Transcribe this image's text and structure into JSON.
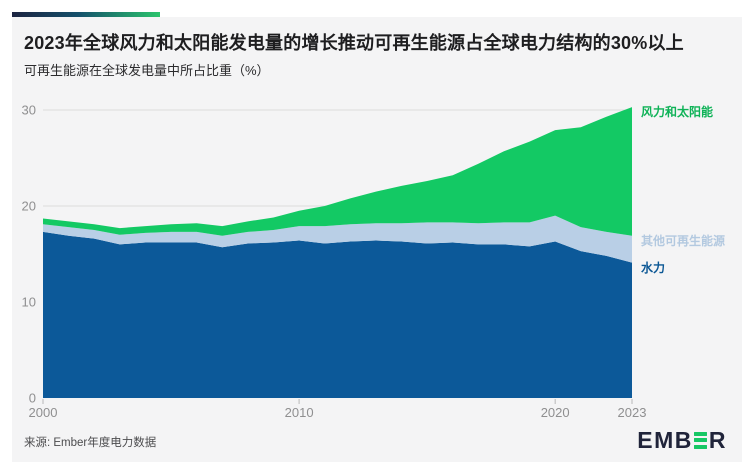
{
  "header": {
    "title": "2023年全球风力和太阳能发电量的增长推动可再生能源占全球电力结构的30%以上",
    "subtitle": "可再生能源在全球发电量中所占比重（%）"
  },
  "accent": {
    "gradient_from": "#1c2340",
    "gradient_to": "#2bc46c"
  },
  "chart_data": {
    "type": "area",
    "stacked": true,
    "title": "可再生能源在全球发电量中所占比重（%）",
    "xlabel": "",
    "ylabel": "%",
    "xlim": [
      2000,
      2023
    ],
    "ylim": [
      0,
      30
    ],
    "yticks": [
      0,
      10,
      20,
      30
    ],
    "xticks": [
      2000,
      2010,
      2020,
      2023
    ],
    "grid": "horizontal",
    "legend_position": "right-of-plot",
    "x": [
      2000,
      2001,
      2002,
      2003,
      2004,
      2005,
      2006,
      2007,
      2008,
      2009,
      2010,
      2011,
      2012,
      2013,
      2014,
      2015,
      2016,
      2017,
      2018,
      2019,
      2020,
      2021,
      2022,
      2023
    ],
    "series": [
      {
        "id": "hydro",
        "label": "水力",
        "color": "#0c5999",
        "label_color": "#0b5795",
        "values": [
          17.3,
          16.9,
          16.6,
          16.0,
          16.2,
          16.2,
          16.2,
          15.7,
          16.1,
          16.2,
          16.4,
          16.1,
          16.3,
          16.4,
          16.3,
          16.1,
          16.2,
          16.0,
          16.0,
          15.8,
          16.3,
          15.3,
          14.8,
          14.1
        ]
      },
      {
        "id": "other-renewables",
        "label": "其他可再生能源",
        "color": "#b9cfe6",
        "label_color": "#b3c9e0",
        "values": [
          0.8,
          0.9,
          0.9,
          1.0,
          1.0,
          1.1,
          1.1,
          1.2,
          1.2,
          1.3,
          1.5,
          1.8,
          1.8,
          1.8,
          1.9,
          2.2,
          2.1,
          2.2,
          2.3,
          2.5,
          2.7,
          2.5,
          2.5,
          2.8
        ]
      },
      {
        "id": "wind-and-solar",
        "label": "风力和太阳能",
        "color": "#13c964",
        "label_color": "#0eb257",
        "values": [
          0.6,
          0.6,
          0.6,
          0.7,
          0.7,
          0.8,
          0.9,
          1.0,
          1.1,
          1.3,
          1.6,
          2.1,
          2.7,
          3.3,
          3.9,
          4.3,
          4.9,
          6.2,
          7.4,
          8.4,
          8.9,
          10.4,
          12.0,
          13.4
        ]
      }
    ],
    "styles": {
      "gridline_color": "#dcdcdc",
      "tick_color": "#b9b9b9",
      "tick_label_color": "#8f8f90"
    }
  },
  "footer": {
    "source": "来源: Ember年度电力数据",
    "logo": {
      "part1": "EMB",
      "part2": "R",
      "bars_color": "#16c764",
      "text_color": "#20243a"
    }
  }
}
